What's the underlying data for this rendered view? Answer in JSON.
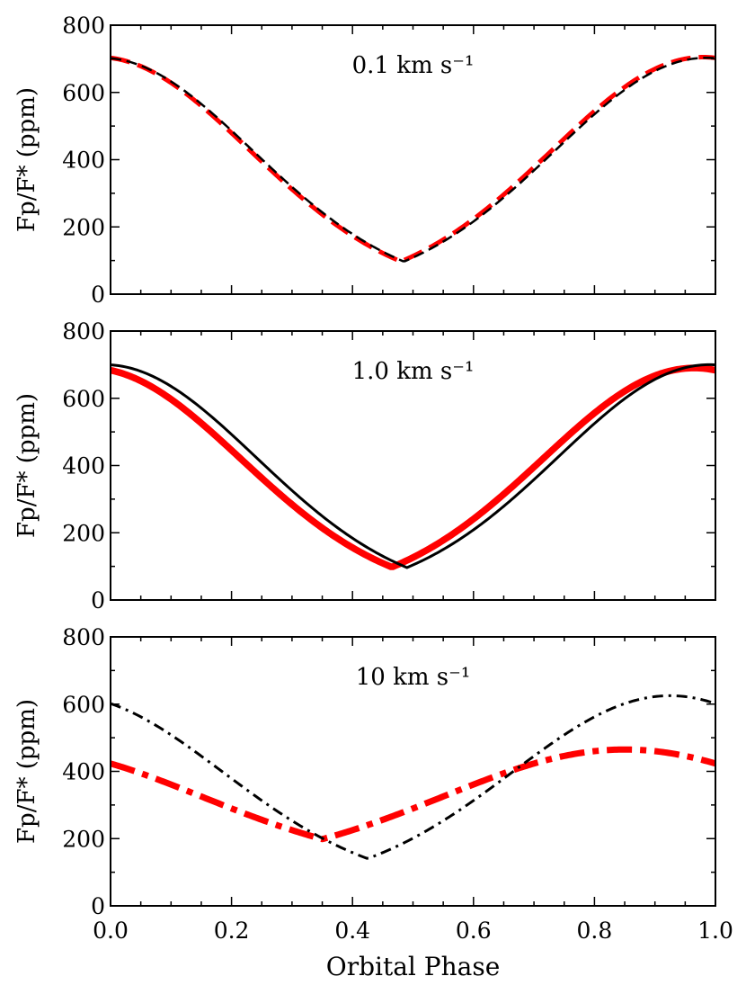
{
  "chart_data": [
    {
      "type": "line",
      "label": "0.1 km s⁻¹",
      "ylabel": "Fp/F* (ppm)",
      "ylim": [
        0,
        800
      ],
      "yticks": [
        0,
        200,
        400,
        600,
        800
      ],
      "xlim": [
        0.0,
        1.0
      ],
      "series": [
        {
          "name": "red",
          "color": "#ff0000",
          "style": "dashed-thick",
          "model": {
            "peak": 705,
            "floor": 2,
            "phi": 0.98,
            "width": 0.25
          }
        },
        {
          "name": "black",
          "color": "#000000",
          "style": "dashed-thin",
          "model": {
            "peak": 703,
            "floor": 2,
            "phi": 0.985,
            "width": 0.25
          }
        }
      ]
    },
    {
      "type": "line",
      "label": "1.0 km s⁻¹",
      "ylabel": "Fp/F* (ppm)",
      "ylim": [
        0,
        800
      ],
      "yticks": [
        0,
        200,
        400,
        600,
        800
      ],
      "xlim": [
        0.0,
        1.0
      ],
      "series": [
        {
          "name": "red",
          "color": "#ff0000",
          "style": "solid-thick",
          "model": {
            "peak": 690,
            "floor": 5,
            "phi": 0.965,
            "width": 0.25
          }
        },
        {
          "name": "black",
          "color": "#000000",
          "style": "solid-thin",
          "model": {
            "peak": 700,
            "floor": 2,
            "phi": 0.99,
            "width": 0.25
          }
        }
      ]
    },
    {
      "type": "line",
      "label": "10 km s⁻¹",
      "ylabel": "Fp/F* (ppm)",
      "xlabel": "Orbital Phase",
      "ylim": [
        0,
        800
      ],
      "yticks": [
        0,
        200,
        400,
        600,
        800
      ],
      "xlim": [
        0.0,
        1.0
      ],
      "xticks": [
        "0.0",
        "0.2",
        "0.4",
        "0.6",
        "0.8",
        "1.0"
      ],
      "series": [
        {
          "name": "red",
          "color": "#ff0000",
          "style": "dashdot-thick",
          "model": {
            "peak": 465,
            "floor": 110,
            "phi": 0.85,
            "width": 0.3
          }
        },
        {
          "name": "black",
          "color": "#000000",
          "style": "dashdot-thin",
          "model": {
            "peak": 625,
            "floor": 50,
            "phi": 0.925,
            "width": 0.26
          }
        }
      ]
    }
  ]
}
